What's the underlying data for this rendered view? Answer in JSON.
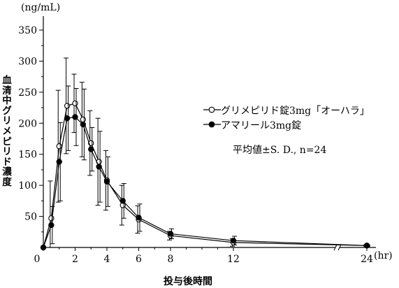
{
  "chart_data": {
    "type": "line",
    "y_unit": "(ng/mL)",
    "x_unit": "(hr)",
    "xlabel": "投与後時間",
    "ylabel": "血清中グリメピリド濃度",
    "ylim": [
      0,
      350
    ],
    "yticks": [
      50,
      100,
      150,
      200,
      250,
      300,
      350
    ],
    "xticks": [
      0,
      2,
      4,
      6,
      8,
      12,
      24
    ],
    "axis_break_between": [
      12,
      24
    ],
    "annotation": "平均値±S. D., n=24",
    "legend_position": "right",
    "series": [
      {
        "name": "グリメピリド錠3mg「オーハラ」",
        "marker": "open-circle",
        "x": [
          0,
          0.5,
          1,
          1.5,
          2,
          2.5,
          3,
          3.5,
          4,
          5,
          6,
          8,
          12,
          24
        ],
        "y": [
          0,
          47,
          163,
          228,
          232,
          206,
          168,
          138,
          108,
          68,
          45,
          19,
          8,
          3
        ],
        "err": [
          0,
          60,
          90,
          77,
          47,
          60,
          52,
          70,
          48,
          32,
          22,
          7,
          6,
          1
        ]
      },
      {
        "name": "アマリール3mg錠",
        "marker": "filled-circle",
        "x": [
          0,
          0.5,
          1,
          1.5,
          2,
          2.5,
          3,
          3.5,
          4,
          5,
          6,
          8,
          12,
          24
        ],
        "y": [
          0,
          36,
          138,
          208,
          210,
          198,
          158,
          130,
          106,
          75,
          48,
          22,
          11,
          3
        ],
        "err": [
          0,
          30,
          63,
          52,
          46,
          57,
          35,
          57,
          40,
          28,
          22,
          8,
          7,
          1
        ]
      }
    ]
  }
}
